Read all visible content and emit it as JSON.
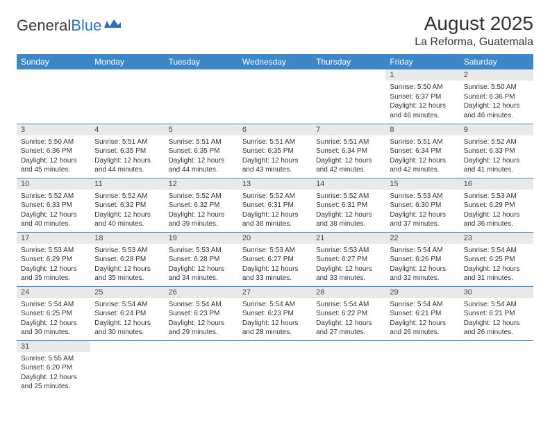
{
  "logo": {
    "text1": "General",
    "text2": "Blue"
  },
  "title": "August 2025",
  "location": "La Reforma, Guatemala",
  "colors": {
    "header_bg": "#3b87c8",
    "header_fg": "#ffffff",
    "daynum_bg": "#e9e9e9",
    "row_border": "#3b87c8",
    "logo_blue": "#2a71b8",
    "text": "#333333",
    "background": "#ffffff"
  },
  "weekdays": [
    "Sunday",
    "Monday",
    "Tuesday",
    "Wednesday",
    "Thursday",
    "Friday",
    "Saturday"
  ],
  "weeks": [
    [
      null,
      null,
      null,
      null,
      null,
      {
        "n": "1",
        "sr": "5:50 AM",
        "ss": "6:37 PM",
        "dl": "12 hours and 46 minutes."
      },
      {
        "n": "2",
        "sr": "5:50 AM",
        "ss": "6:36 PM",
        "dl": "12 hours and 46 minutes."
      }
    ],
    [
      {
        "n": "3",
        "sr": "5:50 AM",
        "ss": "6:36 PM",
        "dl": "12 hours and 45 minutes."
      },
      {
        "n": "4",
        "sr": "5:51 AM",
        "ss": "6:35 PM",
        "dl": "12 hours and 44 minutes."
      },
      {
        "n": "5",
        "sr": "5:51 AM",
        "ss": "6:35 PM",
        "dl": "12 hours and 44 minutes."
      },
      {
        "n": "6",
        "sr": "5:51 AM",
        "ss": "6:35 PM",
        "dl": "12 hours and 43 minutes."
      },
      {
        "n": "7",
        "sr": "5:51 AM",
        "ss": "6:34 PM",
        "dl": "12 hours and 42 minutes."
      },
      {
        "n": "8",
        "sr": "5:51 AM",
        "ss": "6:34 PM",
        "dl": "12 hours and 42 minutes."
      },
      {
        "n": "9",
        "sr": "5:52 AM",
        "ss": "6:33 PM",
        "dl": "12 hours and 41 minutes."
      }
    ],
    [
      {
        "n": "10",
        "sr": "5:52 AM",
        "ss": "6:33 PM",
        "dl": "12 hours and 40 minutes."
      },
      {
        "n": "11",
        "sr": "5:52 AM",
        "ss": "6:32 PM",
        "dl": "12 hours and 40 minutes."
      },
      {
        "n": "12",
        "sr": "5:52 AM",
        "ss": "6:32 PM",
        "dl": "12 hours and 39 minutes."
      },
      {
        "n": "13",
        "sr": "5:52 AM",
        "ss": "6:31 PM",
        "dl": "12 hours and 38 minutes."
      },
      {
        "n": "14",
        "sr": "5:52 AM",
        "ss": "6:31 PM",
        "dl": "12 hours and 38 minutes."
      },
      {
        "n": "15",
        "sr": "5:53 AM",
        "ss": "6:30 PM",
        "dl": "12 hours and 37 minutes."
      },
      {
        "n": "16",
        "sr": "5:53 AM",
        "ss": "6:29 PM",
        "dl": "12 hours and 36 minutes."
      }
    ],
    [
      {
        "n": "17",
        "sr": "5:53 AM",
        "ss": "6:29 PM",
        "dl": "12 hours and 35 minutes."
      },
      {
        "n": "18",
        "sr": "5:53 AM",
        "ss": "6:28 PM",
        "dl": "12 hours and 35 minutes."
      },
      {
        "n": "19",
        "sr": "5:53 AM",
        "ss": "6:28 PM",
        "dl": "12 hours and 34 minutes."
      },
      {
        "n": "20",
        "sr": "5:53 AM",
        "ss": "6:27 PM",
        "dl": "12 hours and 33 minutes."
      },
      {
        "n": "21",
        "sr": "5:53 AM",
        "ss": "6:27 PM",
        "dl": "12 hours and 33 minutes."
      },
      {
        "n": "22",
        "sr": "5:54 AM",
        "ss": "6:26 PM",
        "dl": "12 hours and 32 minutes."
      },
      {
        "n": "23",
        "sr": "5:54 AM",
        "ss": "6:25 PM",
        "dl": "12 hours and 31 minutes."
      }
    ],
    [
      {
        "n": "24",
        "sr": "5:54 AM",
        "ss": "6:25 PM",
        "dl": "12 hours and 30 minutes."
      },
      {
        "n": "25",
        "sr": "5:54 AM",
        "ss": "6:24 PM",
        "dl": "12 hours and 30 minutes."
      },
      {
        "n": "26",
        "sr": "5:54 AM",
        "ss": "6:23 PM",
        "dl": "12 hours and 29 minutes."
      },
      {
        "n": "27",
        "sr": "5:54 AM",
        "ss": "6:23 PM",
        "dl": "12 hours and 28 minutes."
      },
      {
        "n": "28",
        "sr": "5:54 AM",
        "ss": "6:22 PM",
        "dl": "12 hours and 27 minutes."
      },
      {
        "n": "29",
        "sr": "5:54 AM",
        "ss": "6:21 PM",
        "dl": "12 hours and 26 minutes."
      },
      {
        "n": "30",
        "sr": "5:54 AM",
        "ss": "6:21 PM",
        "dl": "12 hours and 26 minutes."
      }
    ],
    [
      {
        "n": "31",
        "sr": "5:55 AM",
        "ss": "6:20 PM",
        "dl": "12 hours and 25 minutes."
      },
      null,
      null,
      null,
      null,
      null,
      null
    ]
  ],
  "labels": {
    "sunrise": "Sunrise: ",
    "sunset": "Sunset: ",
    "daylight": "Daylight: "
  }
}
